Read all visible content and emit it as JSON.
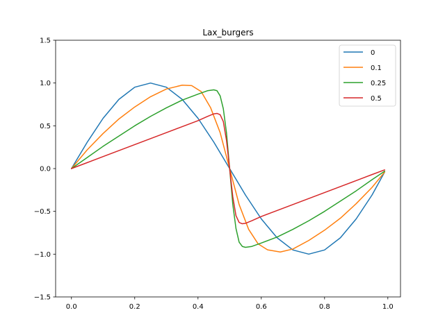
{
  "chart_data": {
    "type": "line",
    "title": "Lax_burgers",
    "xlabel": "",
    "ylabel": "",
    "xlim": [
      -0.05,
      1.04
    ],
    "ylim": [
      -1.5,
      1.5
    ],
    "xticks": [
      0.0,
      0.2,
      0.4,
      0.6,
      0.8,
      1.0
    ],
    "xtick_labels": [
      "0.0",
      "0.2",
      "0.4",
      "0.6",
      "0.8",
      "1.0"
    ],
    "yticks": [
      -1.5,
      -1.0,
      -0.5,
      0.0,
      0.5,
      1.0,
      1.5
    ],
    "ytick_labels": [
      "−1.5",
      "−1.0",
      "−0.5",
      "0.0",
      "0.5",
      "1.0",
      "1.5"
    ],
    "grid": false,
    "legend_position": "top-right",
    "series": [
      {
        "name": "0",
        "color": "#1f77b4",
        "points": [
          [
            0.0,
            0.0
          ],
          [
            0.05,
            0.309
          ],
          [
            0.1,
            0.588
          ],
          [
            0.15,
            0.809
          ],
          [
            0.2,
            0.951
          ],
          [
            0.25,
            1.0
          ],
          [
            0.3,
            0.951
          ],
          [
            0.35,
            0.809
          ],
          [
            0.4,
            0.588
          ],
          [
            0.45,
            0.309
          ],
          [
            0.5,
            0.0
          ],
          [
            0.55,
            -0.309
          ],
          [
            0.6,
            -0.588
          ],
          [
            0.65,
            -0.809
          ],
          [
            0.7,
            -0.951
          ],
          [
            0.75,
            -1.0
          ],
          [
            0.8,
            -0.951
          ],
          [
            0.85,
            -0.809
          ],
          [
            0.9,
            -0.588
          ],
          [
            0.95,
            -0.309
          ],
          [
            0.99,
            -0.04
          ]
        ]
      },
      {
        "name": "0.1",
        "color": "#ff7f0e",
        "points": [
          [
            0.0,
            0.0
          ],
          [
            0.05,
            0.22
          ],
          [
            0.1,
            0.41
          ],
          [
            0.15,
            0.58
          ],
          [
            0.2,
            0.72
          ],
          [
            0.25,
            0.84
          ],
          [
            0.3,
            0.93
          ],
          [
            0.35,
            0.975
          ],
          [
            0.38,
            0.97
          ],
          [
            0.41,
            0.9
          ],
          [
            0.44,
            0.71
          ],
          [
            0.47,
            0.42
          ],
          [
            0.5,
            0.0
          ],
          [
            0.53,
            -0.42
          ],
          [
            0.56,
            -0.71
          ],
          [
            0.59,
            -0.88
          ],
          [
            0.62,
            -0.95
          ],
          [
            0.66,
            -0.975
          ],
          [
            0.7,
            -0.94
          ],
          [
            0.75,
            -0.84
          ],
          [
            0.8,
            -0.72
          ],
          [
            0.85,
            -0.58
          ],
          [
            0.9,
            -0.41
          ],
          [
            0.95,
            -0.22
          ],
          [
            0.99,
            -0.04
          ]
        ]
      },
      {
        "name": "0.25",
        "color": "#2ca02c",
        "points": [
          [
            0.0,
            0.0
          ],
          [
            0.05,
            0.13
          ],
          [
            0.1,
            0.26
          ],
          [
            0.15,
            0.38
          ],
          [
            0.2,
            0.5
          ],
          [
            0.25,
            0.61
          ],
          [
            0.3,
            0.71
          ],
          [
            0.35,
            0.8
          ],
          [
            0.4,
            0.87
          ],
          [
            0.43,
            0.91
          ],
          [
            0.45,
            0.92
          ],
          [
            0.46,
            0.91
          ],
          [
            0.47,
            0.85
          ],
          [
            0.48,
            0.7
          ],
          [
            0.49,
            0.42
          ],
          [
            0.5,
            0.0
          ],
          [
            0.51,
            -0.42
          ],
          [
            0.52,
            -0.7
          ],
          [
            0.53,
            -0.86
          ],
          [
            0.54,
            -0.91
          ],
          [
            0.55,
            -0.92
          ],
          [
            0.57,
            -0.91
          ],
          [
            0.6,
            -0.87
          ],
          [
            0.65,
            -0.8
          ],
          [
            0.7,
            -0.71
          ],
          [
            0.75,
            -0.61
          ],
          [
            0.8,
            -0.5
          ],
          [
            0.85,
            -0.38
          ],
          [
            0.9,
            -0.26
          ],
          [
            0.95,
            -0.13
          ],
          [
            0.99,
            -0.03
          ]
        ]
      },
      {
        "name": "0.5",
        "color": "#d62728",
        "points": [
          [
            0.0,
            0.0
          ],
          [
            0.05,
            0.07
          ],
          [
            0.1,
            0.14
          ],
          [
            0.15,
            0.21
          ],
          [
            0.2,
            0.28
          ],
          [
            0.25,
            0.35
          ],
          [
            0.3,
            0.42
          ],
          [
            0.35,
            0.49
          ],
          [
            0.4,
            0.56
          ],
          [
            0.43,
            0.61
          ],
          [
            0.45,
            0.64
          ],
          [
            0.46,
            0.645
          ],
          [
            0.47,
            0.63
          ],
          [
            0.48,
            0.55
          ],
          [
            0.49,
            0.33
          ],
          [
            0.5,
            0.0
          ],
          [
            0.51,
            -0.33
          ],
          [
            0.52,
            -0.55
          ],
          [
            0.53,
            -0.63
          ],
          [
            0.54,
            -0.645
          ],
          [
            0.55,
            -0.64
          ],
          [
            0.57,
            -0.61
          ],
          [
            0.6,
            -0.56
          ],
          [
            0.65,
            -0.49
          ],
          [
            0.7,
            -0.42
          ],
          [
            0.75,
            -0.35
          ],
          [
            0.8,
            -0.28
          ],
          [
            0.85,
            -0.21
          ],
          [
            0.9,
            -0.14
          ],
          [
            0.95,
            -0.07
          ],
          [
            0.99,
            -0.015
          ]
        ]
      }
    ]
  }
}
